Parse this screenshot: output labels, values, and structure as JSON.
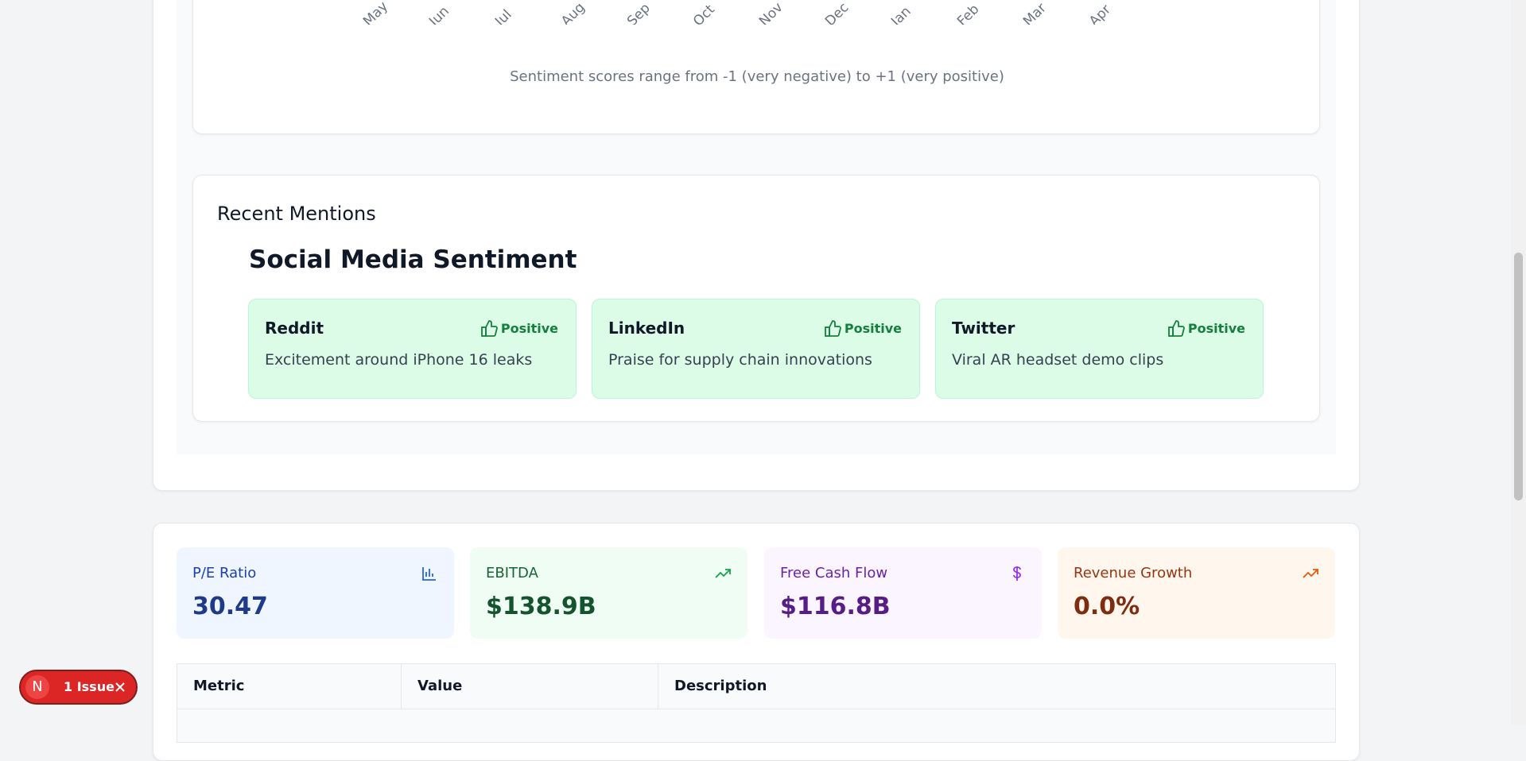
{
  "chart_axis": {
    "months": [
      "May",
      "Jun",
      "Jul",
      "Aug",
      "Sep",
      "Oct",
      "Nov",
      "Dec",
      "Jan",
      "Feb",
      "Mar",
      "Apr"
    ]
  },
  "chart_note": "Sentiment scores range from -1 (very negative) to +1 (very positive)",
  "recent_mentions": {
    "title": "Recent Mentions",
    "subtitle": "Social Media Sentiment",
    "items": [
      {
        "platform": "Reddit",
        "sentiment": "Positive",
        "text": "Excitement around iPhone 16 leaks"
      },
      {
        "platform": "LinkedIn",
        "sentiment": "Positive",
        "text": "Praise for supply chain innovations"
      },
      {
        "platform": "Twitter",
        "sentiment": "Positive",
        "text": "Viral AR headset demo clips"
      }
    ]
  },
  "metrics": [
    {
      "label": "P/E Ratio",
      "value": "30.47"
    },
    {
      "label": "EBITDA",
      "value": "$138.9B"
    },
    {
      "label": "Free Cash Flow",
      "value": "$116.8B"
    },
    {
      "label": "Revenue Growth",
      "value": "0.0%"
    }
  ],
  "table": {
    "headers": [
      "Metric",
      "Value",
      "Description"
    ]
  },
  "issue_badge": {
    "icon": "N",
    "label": "1 Issue"
  }
}
